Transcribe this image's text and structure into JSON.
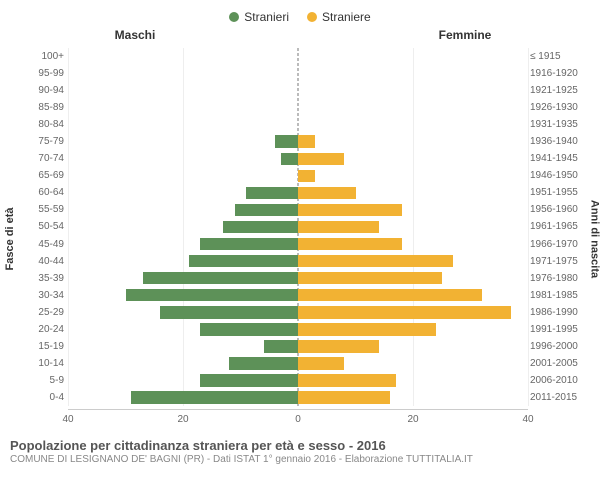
{
  "legend": {
    "male": {
      "label": "Stranieri",
      "color": "#5d9158"
    },
    "female": {
      "label": "Straniere",
      "color": "#f2b233"
    }
  },
  "headers": {
    "male": "Maschi",
    "female": "Femmine"
  },
  "axis_labels": {
    "left": "Fasce di età",
    "right": "Anni di nascita"
  },
  "x_axis": {
    "max": 40,
    "ticks": [
      40,
      20,
      0,
      20,
      40
    ]
  },
  "rows": [
    {
      "age": "100+",
      "birth": "≤ 1915",
      "male": 0,
      "female": 0
    },
    {
      "age": "95-99",
      "birth": "1916-1920",
      "male": 0,
      "female": 0
    },
    {
      "age": "90-94",
      "birth": "1921-1925",
      "male": 0,
      "female": 0
    },
    {
      "age": "85-89",
      "birth": "1926-1930",
      "male": 0,
      "female": 0
    },
    {
      "age": "80-84",
      "birth": "1931-1935",
      "male": 0,
      "female": 0
    },
    {
      "age": "75-79",
      "birth": "1936-1940",
      "male": 4,
      "female": 3
    },
    {
      "age": "70-74",
      "birth": "1941-1945",
      "male": 3,
      "female": 8
    },
    {
      "age": "65-69",
      "birth": "1946-1950",
      "male": 0,
      "female": 3
    },
    {
      "age": "60-64",
      "birth": "1951-1955",
      "male": 9,
      "female": 10
    },
    {
      "age": "55-59",
      "birth": "1956-1960",
      "male": 11,
      "female": 18
    },
    {
      "age": "50-54",
      "birth": "1961-1965",
      "male": 13,
      "female": 14
    },
    {
      "age": "45-49",
      "birth": "1966-1970",
      "male": 17,
      "female": 18
    },
    {
      "age": "40-44",
      "birth": "1971-1975",
      "male": 19,
      "female": 27
    },
    {
      "age": "35-39",
      "birth": "1976-1980",
      "male": 27,
      "female": 25
    },
    {
      "age": "30-34",
      "birth": "1981-1985",
      "male": 30,
      "female": 32
    },
    {
      "age": "25-29",
      "birth": "1986-1990",
      "male": 24,
      "female": 37
    },
    {
      "age": "20-24",
      "birth": "1991-1995",
      "male": 17,
      "female": 24
    },
    {
      "age": "15-19",
      "birth": "1996-2000",
      "male": 6,
      "female": 14
    },
    {
      "age": "10-14",
      "birth": "2001-2005",
      "male": 12,
      "female": 8
    },
    {
      "age": "5-9",
      "birth": "2006-2010",
      "male": 17,
      "female": 17
    },
    {
      "age": "0-4",
      "birth": "2011-2015",
      "male": 29,
      "female": 16
    }
  ],
  "footer": {
    "title": "Popolazione per cittadinanza straniera per età e sesso - 2016",
    "subtitle": "COMUNE DI LESIGNANO DE' BAGNI (PR) - Dati ISTAT 1° gennaio 2016 - Elaborazione TUTTITALIA.IT"
  },
  "colors": {
    "background": "#ffffff",
    "grid": "#eeeeee",
    "axis": "#cccccc",
    "center_dash": "#777777",
    "text_muted": "#666666"
  }
}
